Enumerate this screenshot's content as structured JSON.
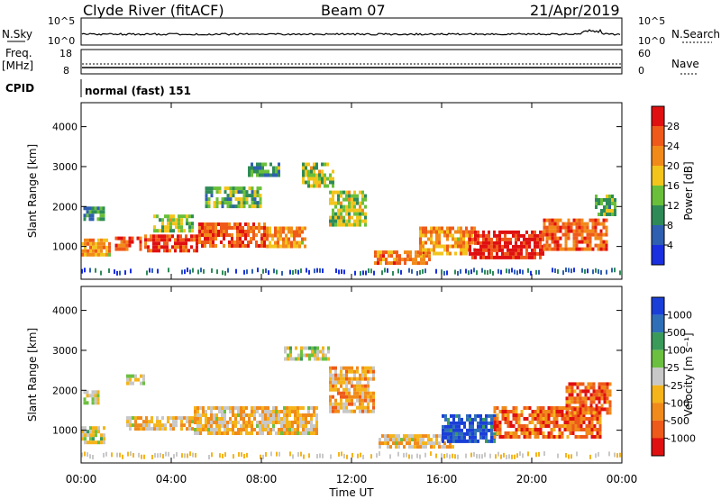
{
  "header": {
    "title": "Clyde River (fitACF)",
    "beam": "Beam 07",
    "date": "21/Apr/2019"
  },
  "noise_panel": {
    "left_label": "N.Sky",
    "right_label": "N.Search",
    "left_ticks": [
      "10^5",
      "10^0"
    ],
    "right_ticks": [
      "10^5",
      "10^0"
    ]
  },
  "freq_panel": {
    "left_label_1": "Freq.",
    "left_label_2": "[MHz]",
    "left_ticks": [
      "18",
      "8"
    ],
    "right_label": "Nave",
    "right_ticks": [
      "60",
      "0"
    ]
  },
  "cpid": {
    "label": "CPID",
    "value": "normal (fast) 151"
  },
  "axes": {
    "xlabel": "Time UT",
    "x_ticks": [
      "00:00",
      "04:00",
      "08:00",
      "12:00",
      "16:00",
      "20:00",
      "00:00"
    ],
    "ylabel": "Slant Range [km]",
    "y_ticks": [
      "1000",
      "2000",
      "3000",
      "4000"
    ]
  },
  "colorbars": {
    "power": {
      "label": "Power [dB]",
      "ticks": [
        "4",
        "8",
        "12",
        "16",
        "20",
        "24",
        "28"
      ],
      "colors": [
        "#1a2fe0",
        "#2f5fb0",
        "#2e8b57",
        "#6abf3a",
        "#f3c41c",
        "#f28a1a",
        "#ef5a1a",
        "#e01010"
      ]
    },
    "velocity": {
      "label": "Velocity [m s⁻¹]",
      "ticks": [
        "1000",
        "500",
        "100",
        "25",
        "-25",
        "-100",
        "-500",
        "-1000"
      ],
      "colors": [
        "#1a3fd8",
        "#2f6fb8",
        "#3a9a5a",
        "#6cc040",
        "#c8c8c8",
        "#f5b41a",
        "#f08a1a",
        "#ee5a1a",
        "#e01010"
      ]
    }
  },
  "chart_data": [
    {
      "type": "heatmap",
      "title": "Power",
      "xlabel": "Time UT",
      "ylabel": "Slant Range [km]",
      "xlim": [
        0,
        24
      ],
      "ylim": [
        180,
        4600
      ],
      "cbar_range": [
        0,
        30
      ],
      "regions": [
        {
          "t0": 0.0,
          "t1": 1.3,
          "r0": 800,
          "r1": 1200,
          "v": 20
        },
        {
          "t0": 0.1,
          "t1": 1.0,
          "r0": 1700,
          "r1": 2000,
          "v": 10
        },
        {
          "t0": 1.5,
          "t1": 2.7,
          "r0": 900,
          "r1": 1250,
          "v": 24
        },
        {
          "t0": 2.8,
          "t1": 5.2,
          "r0": 900,
          "r1": 1300,
          "v": 26
        },
        {
          "t0": 3.2,
          "t1": 5.0,
          "r0": 1400,
          "r1": 1800,
          "v": 14
        },
        {
          "t0": 5.2,
          "t1": 8.2,
          "r0": 1050,
          "r1": 1600,
          "v": 24
        },
        {
          "t0": 5.5,
          "t1": 8.0,
          "r0": 2000,
          "r1": 2500,
          "v": 12
        },
        {
          "t0": 8.2,
          "t1": 10.0,
          "r0": 1000,
          "r1": 1500,
          "v": 20
        },
        {
          "t0": 7.4,
          "t1": 8.8,
          "r0": 2800,
          "r1": 3100,
          "v": 10
        },
        {
          "t0": 9.8,
          "t1": 11.2,
          "r0": 2500,
          "r1": 3100,
          "v": 14
        },
        {
          "t0": 11.0,
          "t1": 12.6,
          "r0": 1500,
          "r1": 2400,
          "v": 14
        },
        {
          "t0": 13.0,
          "t1": 15.4,
          "r0": 600,
          "r1": 900,
          "v": 22
        },
        {
          "t0": 15.0,
          "t1": 17.5,
          "r0": 800,
          "r1": 1500,
          "v": 20
        },
        {
          "t0": 17.2,
          "t1": 20.5,
          "r0": 700,
          "r1": 1400,
          "v": 28
        },
        {
          "t0": 20.5,
          "t1": 23.3,
          "r0": 900,
          "r1": 1700,
          "v": 24
        },
        {
          "t0": 22.8,
          "t1": 23.7,
          "r0": 1800,
          "r1": 2300,
          "v": 12
        }
      ]
    },
    {
      "type": "heatmap",
      "title": "Velocity",
      "xlabel": "Time UT",
      "ylabel": "Slant Range [km]",
      "xlim": [
        0,
        24
      ],
      "ylim": [
        180,
        4600
      ],
      "cbar_range": [
        -1000,
        1000
      ],
      "regions": [
        {
          "t0": 0.0,
          "t1": 1.0,
          "r0": 700,
          "r1": 1100,
          "v": 0
        },
        {
          "t0": 0.1,
          "t1": 0.8,
          "r0": 1700,
          "r1": 2000,
          "v": 0
        },
        {
          "t0": 2.0,
          "t1": 2.8,
          "r0": 2200,
          "r1": 2400,
          "v": 0
        },
        {
          "t0": 2.0,
          "t1": 5.0,
          "r0": 1000,
          "r1": 1350,
          "v": -200
        },
        {
          "t0": 5.0,
          "t1": 10.5,
          "r0": 900,
          "r1": 1600,
          "v": -200
        },
        {
          "t0": 9.0,
          "t1": 11.0,
          "r0": 2800,
          "r1": 3100,
          "v": 0
        },
        {
          "t0": 11.0,
          "t1": 13.0,
          "r0": 1500,
          "r1": 2600,
          "v": -300
        },
        {
          "t0": 13.2,
          "t1": 16.5,
          "r0": 600,
          "r1": 900,
          "v": -200
        },
        {
          "t0": 16.0,
          "t1": 18.5,
          "r0": 700,
          "r1": 1400,
          "v": 800
        },
        {
          "t0": 18.3,
          "t1": 23.0,
          "r0": 800,
          "r1": 1600,
          "v": -600
        },
        {
          "t0": 21.5,
          "t1": 23.5,
          "r0": 1400,
          "r1": 2200,
          "v": -600
        }
      ]
    }
  ]
}
